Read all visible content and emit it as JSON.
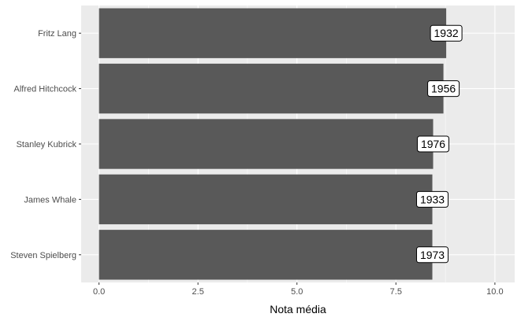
{
  "chart_data": {
    "type": "bar",
    "orientation": "horizontal",
    "title": "",
    "xlabel": "Nota média",
    "ylabel": "",
    "categories": [
      "Fritz Lang",
      "Alfred Hitchcock",
      "Stanley Kubrick",
      "James Whale",
      "Steven Spielberg"
    ],
    "values": [
      8.77,
      8.7,
      8.44,
      8.42,
      8.42
    ],
    "data_labels": [
      "1932",
      "1956",
      "1976",
      "1933",
      "1973"
    ],
    "xlim": [
      -0.45,
      10.5
    ],
    "x_ticks": [
      0,
      2.5,
      5,
      7.5,
      10
    ],
    "x_tick_labels": [
      "0.0",
      "2.5",
      "5.0",
      "7.5",
      "10.0"
    ],
    "grid": true,
    "legend": "none",
    "colors": {
      "bar": "#595959",
      "panel_background": "#ebebeb",
      "grid_major": "#ffffff",
      "label_fill": "#ffffff",
      "label_border": "#000000"
    }
  }
}
